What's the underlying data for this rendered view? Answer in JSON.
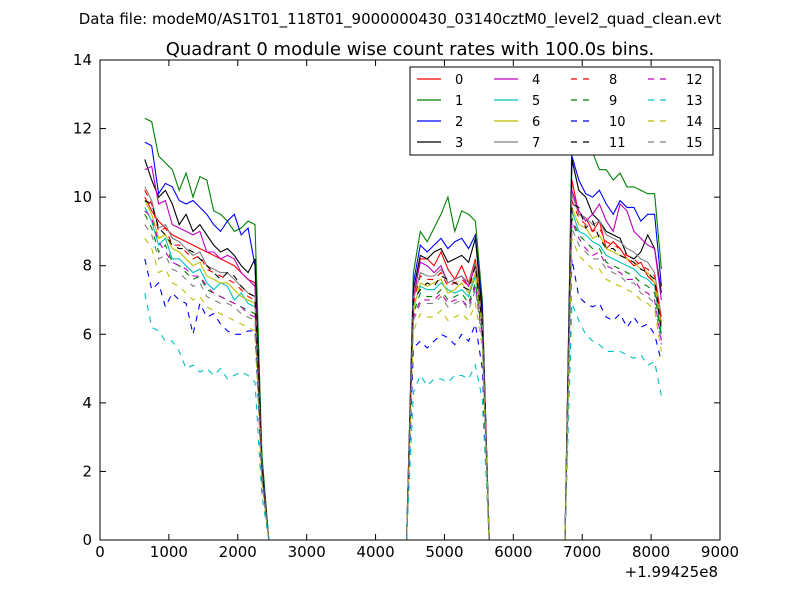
{
  "chart_data": {
    "type": "line",
    "suptitle": "Data file: modeM0/AS1T01_118T01_9000000430_03140cztM0_level2_quad_clean.evt",
    "title": "Quadrant 0 module wise count rates with 100.0s bins.",
    "xlabel": "",
    "ylabel": "",
    "x_offset_label": "+1.99425e8",
    "xlim": [
      0,
      9000
    ],
    "ylim": [
      0,
      14
    ],
    "x_ticks": [
      "0",
      "1000",
      "2000",
      "3000",
      "4000",
      "5000",
      "6000",
      "7000",
      "8000",
      "9000"
    ],
    "y_ticks": [
      "0",
      "2",
      "4",
      "6",
      "8",
      "10",
      "12",
      "14"
    ],
    "grid": false,
    "legend_position": "top-right",
    "legend_columns": 4,
    "x": [
      650,
      750,
      850,
      950,
      1050,
      1150,
      1250,
      1350,
      1450,
      1550,
      1650,
      1750,
      1850,
      1950,
      2050,
      2150,
      2250,
      2350,
      2450,
      4450,
      4550,
      4650,
      4750,
      4850,
      4950,
      5050,
      5150,
      5250,
      5350,
      5450,
      5550,
      5650,
      6750,
      6850,
      6950,
      7050,
      7150,
      7250,
      7350,
      7450,
      7550,
      7650,
      7750,
      7850,
      7950,
      8050,
      8150
    ],
    "series": [
      {
        "name": "0",
        "color": "#ff0000",
        "dash": "solid",
        "values": [
          10.0,
          9.6,
          9.3,
          9.1,
          8.9,
          8.8,
          8.7,
          8.6,
          8.5,
          8.4,
          8.3,
          8.2,
          8.1,
          8.0,
          7.8,
          7.6,
          7.5,
          2.0,
          0.0,
          0.0,
          7.0,
          8.2,
          8.2,
          8.0,
          8.4,
          7.9,
          7.6,
          8.0,
          7.5,
          8.2,
          6.5,
          0.0,
          0.0,
          10.5,
          9.5,
          9.4,
          9.0,
          9.3,
          8.5,
          8.7,
          8.5,
          8.2,
          8.0,
          8.1,
          7.7,
          7.5,
          6.3
        ]
      },
      {
        "name": "1",
        "color": "#008000",
        "dash": "solid",
        "values": [
          12.3,
          12.2,
          11.2,
          11.0,
          10.8,
          10.2,
          10.7,
          10.0,
          10.6,
          10.5,
          9.6,
          9.5,
          9.3,
          9.0,
          9.1,
          9.3,
          9.2,
          2.5,
          0.0,
          0.0,
          7.8,
          9.0,
          8.7,
          9.1,
          9.5,
          10.0,
          9.0,
          9.6,
          9.5,
          9.3,
          7.0,
          0.0,
          0.0,
          11.7,
          11.5,
          11.8,
          11.3,
          10.8,
          10.8,
          10.5,
          10.7,
          10.3,
          10.3,
          10.2,
          10.1,
          10.1,
          7.9
        ]
      },
      {
        "name": "2",
        "color": "#0000ff",
        "dash": "solid",
        "values": [
          11.6,
          11.5,
          10.1,
          10.4,
          10.3,
          9.9,
          9.8,
          9.9,
          9.7,
          9.5,
          9.2,
          9.0,
          9.3,
          9.5,
          8.9,
          9.1,
          8.0,
          2.2,
          0.0,
          0.0,
          7.5,
          8.6,
          8.4,
          8.6,
          8.8,
          8.5,
          8.7,
          8.8,
          8.5,
          8.9,
          6.8,
          0.0,
          0.0,
          11.2,
          10.5,
          10.1,
          10.0,
          10.2,
          9.8,
          9.5,
          9.9,
          9.7,
          9.7,
          9.3,
          9.5,
          9.5,
          7.4
        ]
      },
      {
        "name": "3",
        "color": "#000000",
        "dash": "solid",
        "values": [
          11.1,
          10.5,
          10.0,
          10.2,
          9.8,
          9.2,
          9.5,
          9.0,
          9.2,
          8.9,
          8.6,
          8.4,
          8.5,
          8.3,
          8.0,
          7.8,
          8.2,
          2.1,
          0.0,
          0.0,
          7.3,
          8.3,
          8.2,
          8.4,
          8.5,
          8.1,
          8.2,
          8.3,
          8.1,
          8.8,
          6.6,
          0.0,
          0.0,
          11.1,
          10.2,
          10.0,
          9.5,
          9.3,
          9.0,
          8.9,
          8.8,
          8.3,
          8.2,
          8.4,
          8.9,
          8.5,
          7.2
        ]
      },
      {
        "name": "4",
        "color": "#bf00bf",
        "dash": "solid",
        "values": [
          10.8,
          10.9,
          9.8,
          9.9,
          9.2,
          9.1,
          9.0,
          8.9,
          9.0,
          8.4,
          8.4,
          8.2,
          8.3,
          8.2,
          7.8,
          7.6,
          7.4,
          2.0,
          0.0,
          0.0,
          7.1,
          8.1,
          8.0,
          7.8,
          8.0,
          7.5,
          7.6,
          7.7,
          7.4,
          8.0,
          6.4,
          0.0,
          0.0,
          10.2,
          9.6,
          9.3,
          9.5,
          9.8,
          9.3,
          9.0,
          9.8,
          9.6,
          9.0,
          8.8,
          8.6,
          8.5,
          7.0
        ]
      },
      {
        "name": "5",
        "color": "#00bfbf",
        "dash": "solid",
        "values": [
          9.7,
          9.3,
          8.6,
          8.8,
          8.2,
          8.2,
          8.0,
          7.8,
          7.9,
          7.5,
          7.3,
          7.5,
          7.4,
          7.0,
          7.2,
          6.9,
          6.8,
          1.9,
          0.0,
          0.0,
          6.8,
          7.4,
          7.3,
          7.3,
          7.5,
          7.3,
          7.2,
          7.3,
          7.1,
          7.7,
          6.2,
          0.0,
          0.0,
          9.6,
          9.0,
          8.9,
          8.7,
          8.6,
          8.3,
          8.2,
          8.1,
          8.0,
          7.9,
          7.7,
          7.6,
          7.4,
          6.0
        ]
      },
      {
        "name": "6",
        "color": "#bfbf00",
        "dash": "solid",
        "values": [
          9.9,
          9.5,
          8.8,
          8.9,
          8.5,
          8.4,
          8.2,
          8.0,
          8.1,
          7.7,
          7.6,
          7.5,
          7.5,
          7.3,
          7.1,
          7.0,
          6.9,
          1.9,
          0.0,
          0.0,
          6.7,
          7.5,
          7.4,
          7.5,
          7.6,
          7.2,
          7.3,
          7.5,
          7.2,
          7.8,
          6.2,
          0.0,
          0.0,
          9.7,
          9.2,
          9.1,
          8.8,
          8.9,
          8.5,
          8.4,
          8.3,
          8.2,
          8.1,
          7.9,
          7.8,
          7.5,
          6.2
        ]
      },
      {
        "name": "7",
        "color": "#808080",
        "dash": "solid",
        "values": [
          10.3,
          9.9,
          9.1,
          9.2,
          8.8,
          8.7,
          8.5,
          8.3,
          8.4,
          8.0,
          7.9,
          7.8,
          7.8,
          7.6,
          7.4,
          7.2,
          7.1,
          2.0,
          0.0,
          0.0,
          7.0,
          7.8,
          7.7,
          7.7,
          7.9,
          7.5,
          7.6,
          7.7,
          7.5,
          8.1,
          6.4,
          0.0,
          0.0,
          10.1,
          9.5,
          9.4,
          9.2,
          9.3,
          8.9,
          8.8,
          8.7,
          8.5,
          8.4,
          8.2,
          8.1,
          7.8,
          6.5
        ]
      },
      {
        "name": "8",
        "color": "#ff0000",
        "dash": "dashed",
        "values": [
          10.2,
          9.8,
          9.0,
          9.1,
          8.6,
          8.6,
          8.4,
          8.2,
          8.3,
          7.9,
          7.8,
          7.7,
          7.6,
          7.5,
          7.3,
          7.1,
          7.0,
          2.0,
          0.0,
          0.0,
          6.9,
          7.7,
          7.6,
          7.6,
          7.8,
          7.4,
          7.5,
          7.6,
          7.4,
          8.0,
          6.3,
          0.0,
          0.0,
          9.9,
          9.4,
          9.2,
          9.0,
          9.1,
          8.7,
          8.6,
          8.5,
          8.3,
          8.2,
          8.0,
          7.9,
          7.7,
          6.4
        ]
      },
      {
        "name": "9",
        "color": "#008000",
        "dash": "dashed",
        "values": [
          9.5,
          9.1,
          8.4,
          8.6,
          8.1,
          8.0,
          7.8,
          7.6,
          7.7,
          7.3,
          7.2,
          7.1,
          7.0,
          6.9,
          6.8,
          6.7,
          6.6,
          1.8,
          0.0,
          0.0,
          6.6,
          7.2,
          7.1,
          7.1,
          7.3,
          7.0,
          7.1,
          7.2,
          6.9,
          7.5,
          6.0,
          0.0,
          0.0,
          9.4,
          8.9,
          8.7,
          8.5,
          8.5,
          8.1,
          8.0,
          7.9,
          7.8,
          7.7,
          7.5,
          7.4,
          7.2,
          5.9
        ]
      },
      {
        "name": "10",
        "color": "#0000ff",
        "dash": "dashed",
        "values": [
          8.2,
          7.3,
          7.5,
          6.8,
          7.2,
          7.0,
          6.9,
          6.0,
          6.9,
          6.5,
          6.6,
          6.3,
          6.1,
          6.0,
          6.0,
          6.1,
          6.1,
          1.7,
          0.0,
          0.0,
          5.6,
          5.8,
          5.6,
          5.8,
          6.0,
          5.9,
          5.7,
          6.0,
          5.8,
          6.3,
          5.0,
          0.0,
          0.0,
          8.2,
          7.1,
          6.9,
          6.8,
          6.9,
          6.5,
          6.4,
          6.6,
          6.2,
          6.5,
          6.2,
          6.3,
          6.0,
          5.2
        ]
      },
      {
        "name": "11",
        "color": "#000000",
        "dash": "dashed",
        "values": [
          9.9,
          9.8,
          9.1,
          8.9,
          8.6,
          8.5,
          8.5,
          8.4,
          8.2,
          8.0,
          7.8,
          7.6,
          7.8,
          7.7,
          7.4,
          7.2,
          7.1,
          2.0,
          0.0,
          0.0,
          7.0,
          7.3,
          7.5,
          7.4,
          7.7,
          7.6,
          7.5,
          7.4,
          7.3,
          8.0,
          6.3,
          0.0,
          0.0,
          9.8,
          9.7,
          9.1,
          9.3,
          8.8,
          8.5,
          8.5,
          8.3,
          8.2,
          8.1,
          7.9,
          7.8,
          7.6,
          6.1
        ]
      },
      {
        "name": "12",
        "color": "#bf00bf",
        "dash": "dashed",
        "values": [
          9.6,
          9.4,
          8.7,
          8.4,
          8.1,
          8.0,
          7.9,
          7.7,
          7.7,
          7.4,
          7.2,
          7.1,
          7.0,
          6.9,
          6.8,
          6.6,
          6.5,
          1.8,
          0.0,
          0.0,
          6.5,
          7.0,
          7.0,
          7.0,
          7.2,
          6.9,
          7.0,
          7.0,
          6.8,
          7.4,
          5.9,
          0.0,
          0.0,
          9.3,
          8.8,
          8.5,
          8.3,
          8.4,
          8.0,
          7.9,
          7.8,
          7.6,
          7.6,
          7.3,
          7.2,
          7.0,
          5.8
        ]
      },
      {
        "name": "13",
        "color": "#00bfbf",
        "dash": "dashed",
        "values": [
          7.2,
          6.2,
          6.1,
          5.8,
          5.8,
          5.5,
          5.0,
          5.1,
          4.9,
          5.0,
          4.8,
          5.0,
          4.7,
          4.8,
          4.9,
          4.8,
          4.6,
          1.3,
          0.0,
          0.0,
          4.3,
          4.8,
          4.5,
          4.7,
          4.7,
          4.6,
          4.8,
          4.8,
          4.7,
          5.1,
          4.1,
          0.0,
          0.0,
          6.9,
          6.4,
          6.0,
          5.8,
          5.7,
          5.5,
          5.5,
          5.5,
          5.4,
          5.3,
          5.4,
          5.1,
          5.2,
          4.2
        ]
      },
      {
        "name": "14",
        "color": "#bfbf00",
        "dash": "dashed",
        "values": [
          8.8,
          8.5,
          7.8,
          7.9,
          7.5,
          7.4,
          7.2,
          7.0,
          7.1,
          6.8,
          6.7,
          6.6,
          6.5,
          6.4,
          6.3,
          6.2,
          6.1,
          1.7,
          0.0,
          0.0,
          6.1,
          6.6,
          6.5,
          6.5,
          6.7,
          6.4,
          6.5,
          6.6,
          6.4,
          6.9,
          5.6,
          0.0,
          0.0,
          8.8,
          8.3,
          8.1,
          7.9,
          7.9,
          7.6,
          7.5,
          7.4,
          7.3,
          7.2,
          7.0,
          6.9,
          6.7,
          5.5
        ]
      },
      {
        "name": "15",
        "color": "#808080",
        "dash": "dashed",
        "values": [
          9.2,
          8.9,
          8.2,
          8.3,
          7.9,
          7.8,
          7.6,
          7.4,
          7.5,
          7.1,
          7.0,
          6.9,
          6.9,
          6.8,
          6.6,
          6.5,
          6.4,
          1.8,
          0.0,
          0.0,
          6.4,
          6.9,
          6.9,
          6.9,
          7.1,
          6.8,
          6.9,
          7.0,
          6.7,
          7.3,
          5.8,
          0.0,
          0.0,
          9.1,
          8.6,
          8.4,
          8.2,
          8.2,
          7.9,
          7.8,
          7.7,
          7.5,
          7.5,
          7.2,
          7.1,
          6.9,
          5.7
        ]
      }
    ]
  }
}
